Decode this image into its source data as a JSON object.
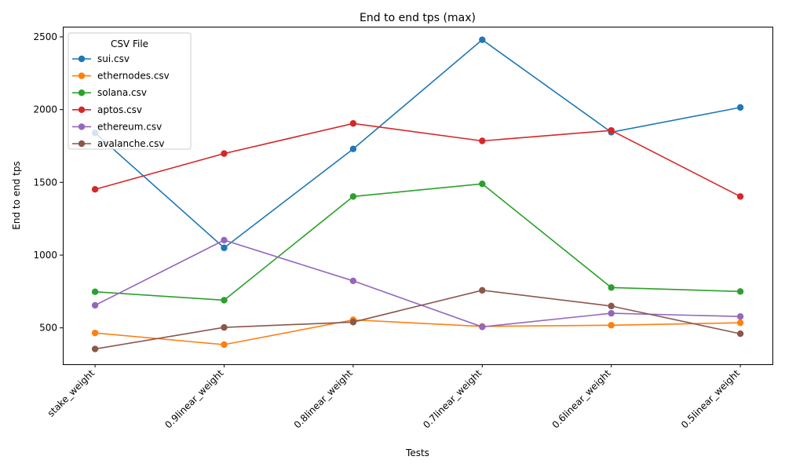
{
  "chart_data": {
    "type": "line",
    "title": "End to end tps (max)",
    "xlabel": "Tests",
    "ylabel": "End to end tps",
    "categories": [
      "stake_weight",
      "0.9linear_weight",
      "0.8linear_weight",
      "0.7linear_weight",
      "0.6linear_weight",
      "0.5linear_weight"
    ],
    "ylim": [
      250,
      2570
    ],
    "yticks": [
      500,
      1000,
      1500,
      2000,
      2500
    ],
    "grid": false,
    "legend": {
      "title": "CSV File",
      "placement": "top-left"
    },
    "series": [
      {
        "name": "sui.csv",
        "color": "#1f77b4",
        "values": [
          1840,
          1050,
          1730,
          2480,
          1845,
          2015
        ]
      },
      {
        "name": "ethernodes.csv",
        "color": "#ff7f0e",
        "values": [
          465,
          385,
          555,
          510,
          518,
          535
        ]
      },
      {
        "name": "solana.csv",
        "color": "#2ca02c",
        "values": [
          748,
          690,
          1403,
          1490,
          777,
          750
        ]
      },
      {
        "name": "aptos.csv",
        "color": "#d62728",
        "values": [
          1452,
          1698,
          1905,
          1785,
          1857,
          1403
        ]
      },
      {
        "name": "ethereum.csv",
        "color": "#9467bd",
        "values": [
          655,
          1103,
          823,
          507,
          600,
          578
        ]
      },
      {
        "name": "avalanche.csv",
        "color": "#8c564b",
        "values": [
          355,
          503,
          540,
          758,
          650,
          460
        ]
      }
    ]
  }
}
